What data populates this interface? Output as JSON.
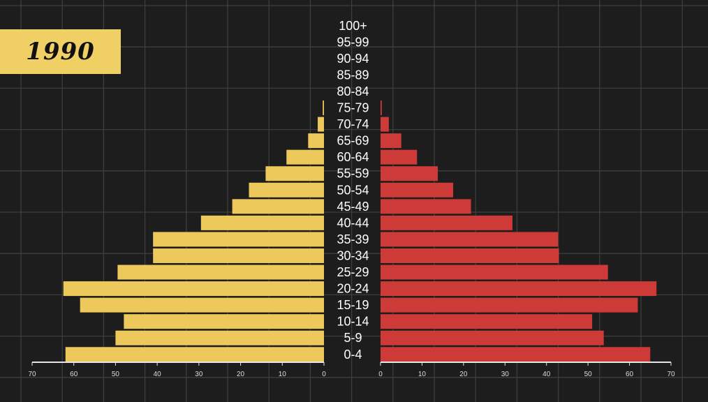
{
  "year_label": "1990",
  "colors": {
    "background": "#1d1d1d",
    "grid": "#3e3e3e",
    "male": "#ecc95a",
    "female": "#cd3a38",
    "label": "#ffffff",
    "year_box": "#f0d064"
  },
  "chart_data": {
    "type": "bar",
    "orientation": "horizontal-population-pyramid",
    "categories": [
      "100+",
      "95-99",
      "90-94",
      "85-89",
      "80-84",
      "75-79",
      "70-74",
      "65-69",
      "60-64",
      "55-59",
      "50-54",
      "45-49",
      "40-44",
      "35-39",
      "30-34",
      "25-29",
      "20-24",
      "15-19",
      "10-14",
      "5-9",
      "0-4"
    ],
    "series": [
      {
        "side": "left",
        "values": [
          0,
          0,
          0,
          0,
          0,
          0.3,
          1.5,
          3.8,
          9,
          14,
          18,
          22,
          29.5,
          41,
          41,
          49.5,
          62.5,
          58.5,
          48,
          50,
          62
        ]
      },
      {
        "side": "right",
        "values": [
          0,
          0,
          0,
          0,
          0,
          0.3,
          2,
          5,
          8.8,
          13.8,
          17.5,
          21.8,
          31.8,
          42.8,
          43,
          54.8,
          66.5,
          62,
          51,
          53.8,
          65
        ]
      }
    ],
    "xlim": [
      0,
      70
    ],
    "tick_labels": [
      "70",
      "60",
      "50",
      "40",
      "30",
      "20",
      "10",
      "0"
    ],
    "tick_labels_right": [
      "0",
      "10",
      "20",
      "30",
      "40",
      "50",
      "60",
      "70"
    ],
    "grid": true,
    "legend": "none"
  }
}
